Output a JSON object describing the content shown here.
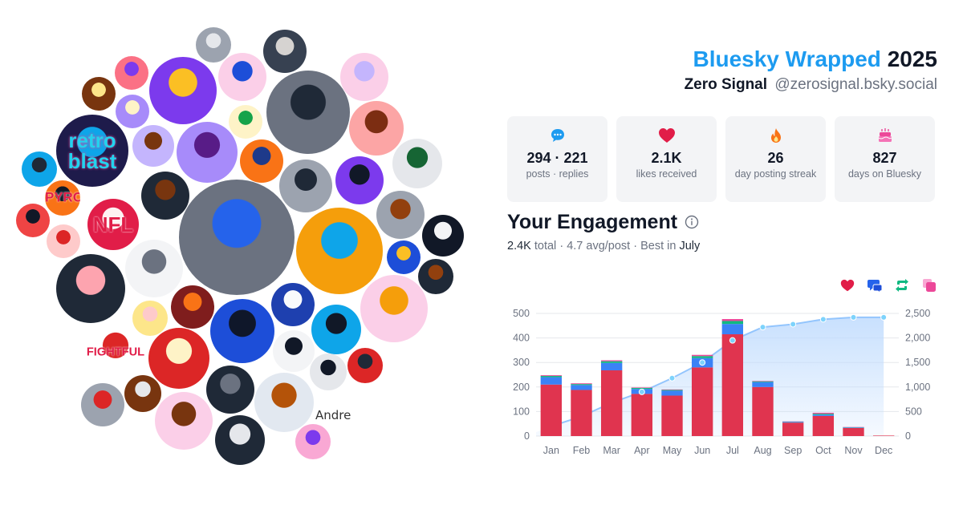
{
  "header": {
    "brand": "Bluesky Wrapped",
    "year": "2025",
    "display_name": "Zero Signal",
    "handle": "@zerosignal.bsky.social"
  },
  "stats": [
    {
      "icon": "speech-bubble-icon",
      "value": "294 · 221",
      "label": "posts · replies",
      "color": "#1d9bf0"
    },
    {
      "icon": "heart-icon",
      "value": "2.1K",
      "label": "likes received",
      "color": "#e11d48"
    },
    {
      "icon": "flame-icon",
      "value": "26",
      "label": "day posting streak",
      "color": "#f97316"
    },
    {
      "icon": "cake-icon",
      "value": "827",
      "label": "days on Bluesky",
      "color": "#ec4899"
    }
  ],
  "engagement": {
    "title": "Your Engagement",
    "total": "2.4K",
    "total_word": "total",
    "avg": "4.7 avg/post",
    "best_prefix": "Best in",
    "best_month": "July"
  },
  "legend": [
    {
      "icon": "heart-icon",
      "color": "#e11d48"
    },
    {
      "icon": "reply-icon",
      "color": "#2563eb"
    },
    {
      "icon": "repost-icon",
      "color": "#10b981"
    },
    {
      "icon": "quote-icon",
      "color": "#ec4899"
    }
  ],
  "avatar_cloud": {
    "badge_texts": [
      "retro",
      "blast",
      "NFL",
      "FIGHTFUL",
      "PYRO"
    ],
    "broken_image_alt": "Andre"
  },
  "chart_data": {
    "type": "bar",
    "categories": [
      "Jan",
      "Feb",
      "Mar",
      "Apr",
      "May",
      "Jun",
      "Jul",
      "Aug",
      "Sep",
      "Oct",
      "Nov",
      "Dec"
    ],
    "series": [
      {
        "values": [
          210,
          188,
          268,
          172,
          165,
          280,
          415,
          200,
          55,
          82,
          33,
          2
        ],
        "color": "#e0344f"
      },
      {
        "values": [
          30,
          20,
          30,
          20,
          20,
          38,
          42,
          20,
          3,
          5,
          2,
          0
        ],
        "color": "#3b82f6"
      },
      {
        "values": [
          5,
          4,
          7,
          4,
          3,
          8,
          12,
          3,
          1,
          4,
          1,
          0
        ],
        "color": "#10b981"
      },
      {
        "values": [
          3,
          3,
          4,
          2,
          2,
          5,
          8,
          2,
          1,
          4,
          1,
          0
        ],
        "color": "#ec4899"
      }
    ],
    "cumulative": {
      "values": [
        200,
        400,
        680,
        900,
        1180,
        1500,
        1950,
        2220,
        2280,
        2380,
        2420,
        2420
      ],
      "ylim": [
        0,
        2500
      ],
      "yticks": [
        "0",
        "500",
        "1,000",
        "1,500",
        "2,000",
        "2,500"
      ],
      "color": "#93c5fd"
    },
    "ylim": [
      0,
      500
    ],
    "yticks": [
      "0",
      "100",
      "200",
      "300",
      "400",
      "500"
    ],
    "grid": true
  }
}
